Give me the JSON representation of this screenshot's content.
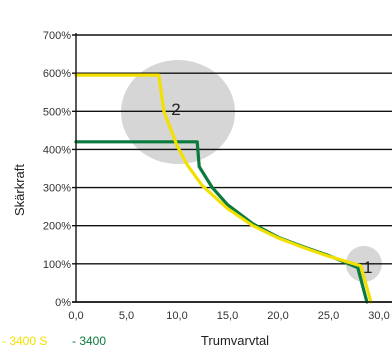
{
  "chart_data": {
    "type": "line",
    "xlabel": "Trumvarvtal",
    "ylabel": "Skärkraft",
    "xlim": [
      0,
      30
    ],
    "ylim": [
      0,
      700
    ],
    "x_ticks": [
      "0,0",
      "5,0",
      "10,0",
      "15,0",
      "20,0",
      "25,0",
      "30,0"
    ],
    "x_tick_values": [
      0,
      5,
      10,
      15,
      20,
      25,
      30
    ],
    "y_ticks": [
      "0%",
      "100%",
      "200%",
      "300%",
      "400%",
      "500%",
      "600%",
      "700%"
    ],
    "y_tick_values": [
      0,
      100,
      200,
      300,
      400,
      500,
      600,
      700
    ],
    "grid": "horizontal",
    "series": [
      {
        "name": "3400",
        "color": "#0b7a3e",
        "x": [
          0,
          12,
          12.2,
          13.5,
          15,
          17.5,
          20,
          22.5,
          25,
          27.9,
          28.8
        ],
        "y": [
          420,
          420,
          355,
          300,
          255,
          205,
          170,
          145,
          122,
          90,
          0
        ]
      },
      {
        "name": "3400 S",
        "color": "#f2e000",
        "x": [
          0,
          8.2,
          8.7,
          10,
          11,
          12.5,
          15,
          17.5,
          20,
          22.5,
          25,
          28.2,
          29.2
        ],
        "y": [
          595,
          595,
          500,
          410,
          360,
          305,
          245,
          200,
          168,
          143,
          120,
          95,
          0
        ]
      }
    ],
    "callouts": [
      {
        "label": "2",
        "x": 10.1,
        "y": 498
      },
      {
        "label": "1",
        "x": 28.5,
        "y": 100
      }
    ],
    "legend": {
      "position": "bottom-left",
      "items": [
        {
          "marker": "- ",
          "label": "3400 S",
          "color": "#f2e000"
        },
        {
          "marker": "- ",
          "label": "3400",
          "color": "#0b7a3e"
        }
      ]
    }
  }
}
